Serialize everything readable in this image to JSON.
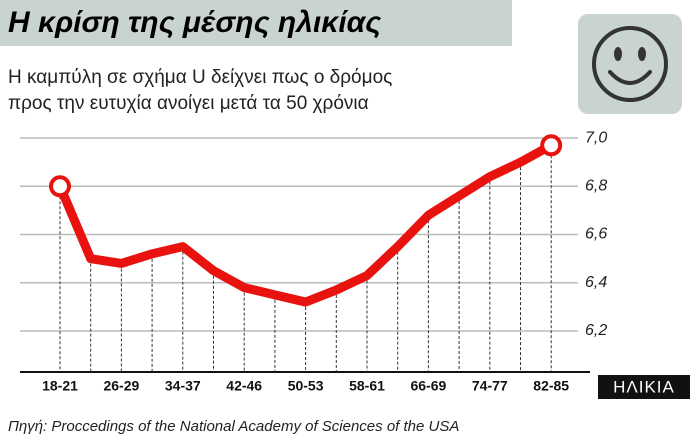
{
  "chart_data": {
    "type": "line",
    "title": "Η κρίση της μέσης ηλικίας",
    "subtitle": [
      "Η καμπύλη σε σχήμα U δείχνει πως ο δρόμος",
      "προς την ευτυχία ανοίγει μετά τα 50 χρόνια"
    ],
    "x_label": "ΗΛΙΚΙΑ",
    "source": "Πηγή: Proccedings of the National Academy of Sciences of the USA",
    "categories": [
      "18-21",
      null,
      "26-29",
      null,
      "34-37",
      null,
      "42-46",
      null,
      "50-53",
      null,
      "58-61",
      null,
      "66-69",
      null,
      "74-77",
      null,
      "82-85"
    ],
    "series": [
      {
        "name": "ευτυχία",
        "color": "#e8130f",
        "values": [
          6.8,
          6.5,
          6.48,
          6.52,
          6.55,
          6.45,
          6.38,
          6.35,
          6.32,
          6.37,
          6.43,
          6.55,
          6.68,
          6.76,
          6.84,
          6.9,
          6.97
        ]
      }
    ],
    "ylim": [
      6.03,
      7.05
    ],
    "yticks": [
      {
        "value": 6.2,
        "label": "6,2"
      },
      {
        "value": 6.4,
        "label": "6,4"
      },
      {
        "value": 6.6,
        "label": "6,6"
      },
      {
        "value": 6.8,
        "label": "6,8"
      },
      {
        "value": 7.0,
        "label": "7,0"
      }
    ],
    "grid": true
  }
}
